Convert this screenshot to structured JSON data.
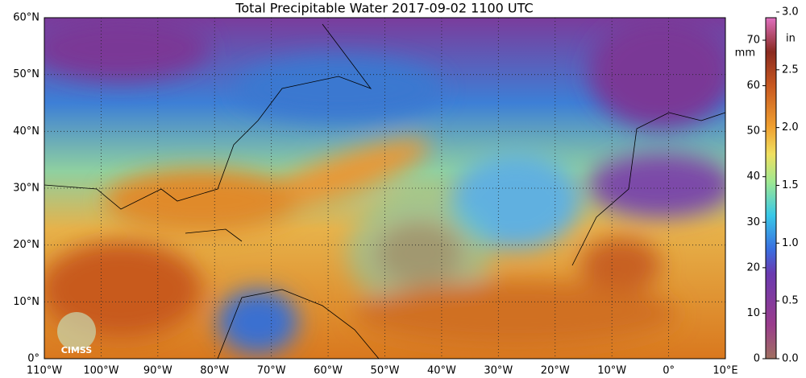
{
  "title": "Total Precipitable Water  2017-09-02 1100 UTC",
  "lat_labels": [
    "0°",
    "10°N",
    "20°N",
    "30°N",
    "40°N",
    "50°N",
    "60°N"
  ],
  "lon_labels": [
    "110°W",
    "100°W",
    "90°W",
    "80°W",
    "70°W",
    "60°W",
    "50°W",
    "40°W",
    "30°W",
    "20°W",
    "10°W",
    "0°",
    "10°E"
  ],
  "colorbar": {
    "mm_unit": "mm",
    "in_unit": "in",
    "mm_ticks": [
      0,
      10,
      20,
      30,
      40,
      50,
      60,
      70
    ],
    "in_ticks": [
      {
        "value": 0,
        "label": "0.0"
      },
      {
        "value": 0.5,
        "label": "0.5"
      },
      {
        "value": 1,
        "label": "1.0"
      },
      {
        "value": 1.5,
        "label": "1.5"
      },
      {
        "value": 2,
        "label": "2.0"
      },
      {
        "value": 2.5,
        "label": "2.5"
      },
      {
        "value": 3,
        "label": "3.0"
      }
    ]
  },
  "logo": "CIMSS"
}
